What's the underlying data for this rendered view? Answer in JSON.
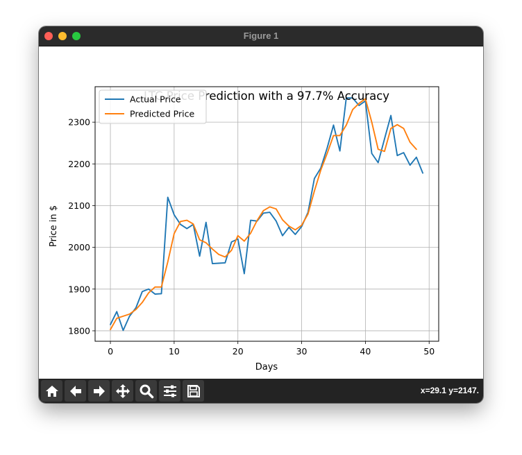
{
  "window": {
    "title": "Figure 1"
  },
  "toolbar": {
    "buttons": [
      {
        "name": "home-button",
        "icon": "home-icon"
      },
      {
        "name": "back-button",
        "icon": "arrow-left-icon"
      },
      {
        "name": "forward-button",
        "icon": "arrow-right-icon"
      },
      {
        "name": "pan-button",
        "icon": "move-icon"
      },
      {
        "name": "zoom-button",
        "icon": "search-icon"
      },
      {
        "name": "configure-subplots-button",
        "icon": "sliders-icon"
      },
      {
        "name": "save-button",
        "icon": "save-icon"
      }
    ],
    "coords": "x=29.1 y=2147."
  },
  "chart_data": {
    "type": "line",
    "title": "LTC Price Prediction with a 97.7% Accuracy",
    "xlabel": "Days",
    "ylabel": "Price in $",
    "xlim": [
      -2.4,
      51.5
    ],
    "ylim": [
      1775,
      2385
    ],
    "xticks": [
      0,
      10,
      20,
      30,
      40,
      50
    ],
    "yticks": [
      1800,
      1900,
      2000,
      2100,
      2200,
      2300
    ],
    "grid": true,
    "legend": "top-left",
    "series": [
      {
        "name": "Actual Price",
        "color": "#1f77b4",
        "x": [
          0,
          1,
          2,
          3,
          4,
          5,
          6,
          7,
          8,
          9,
          10,
          11,
          12,
          13,
          14,
          15,
          16,
          17,
          18,
          19,
          20,
          21,
          22,
          23,
          24,
          25,
          26,
          27,
          28,
          29,
          30,
          31,
          32,
          33,
          34,
          35,
          36,
          37,
          38,
          39,
          40,
          41,
          42,
          43,
          44,
          45,
          46,
          47,
          48,
          49
        ],
        "values": [
          1815,
          1846,
          1801,
          1835,
          1855,
          1894,
          1900,
          1888,
          1889,
          2120,
          2078,
          2055,
          2045,
          2055,
          1979,
          2060,
          1961,
          1962,
          1963,
          2013,
          2020,
          1937,
          2065,
          2063,
          2082,
          2084,
          2063,
          2028,
          2048,
          2031,
          2050,
          2084,
          2165,
          2190,
          2238,
          2293,
          2231,
          2358,
          2358,
          2340,
          2351,
          2225,
          2203,
          2260,
          2316,
          2220,
          2227,
          2197,
          2216,
          2178
        ]
      },
      {
        "name": "Predicted Price",
        "color": "#ff7f0e",
        "x": [
          0,
          1,
          2,
          3,
          4,
          5,
          6,
          7,
          8,
          9,
          10,
          11,
          12,
          13,
          14,
          15,
          16,
          17,
          18,
          19,
          20,
          21,
          22,
          23,
          24,
          25,
          26,
          27,
          28,
          29,
          30,
          31,
          32,
          33,
          34,
          35,
          36,
          37,
          38,
          39,
          40,
          41,
          42,
          43,
          44,
          45,
          46,
          47,
          48
        ],
        "values": [
          1803,
          1830,
          1835,
          1840,
          1851,
          1868,
          1891,
          1905,
          1905,
          1965,
          2033,
          2062,
          2065,
          2056,
          2018,
          2011,
          1996,
          1983,
          1977,
          1993,
          2028,
          2015,
          2034,
          2064,
          2088,
          2097,
          2092,
          2066,
          2051,
          2042,
          2053,
          2080,
          2135,
          2185,
          2225,
          2268,
          2268,
          2293,
          2330,
          2345,
          2356,
          2300,
          2235,
          2230,
          2285,
          2294,
          2285,
          2252,
          2235
        ]
      }
    ]
  }
}
